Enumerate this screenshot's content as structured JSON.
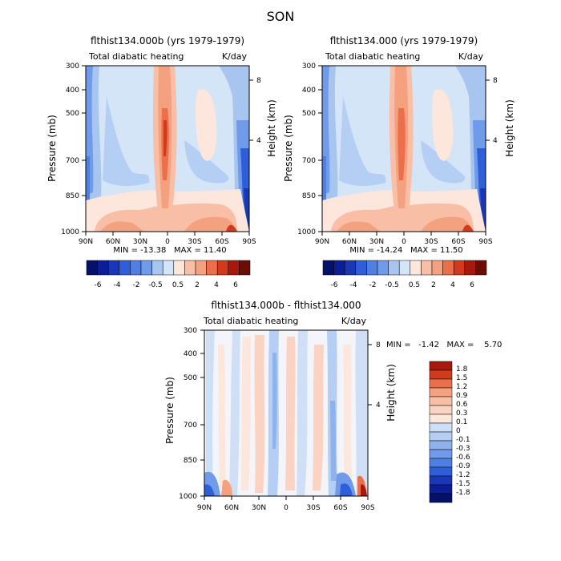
{
  "figure_title": "SON",
  "colorbar_ticks": [
    "-6",
    "-4",
    "-2",
    "-0.5",
    "0.5",
    "2",
    "4",
    "6"
  ],
  "legend_labels": [
    "1.8",
    "1.5",
    "1.2",
    "0.9",
    "0.6",
    "0.3",
    "0.1",
    "0",
    "-0.1",
    "-0.3",
    "-0.6",
    "-0.9",
    "-1.2",
    "-1.5",
    "-1.8"
  ],
  "chart_data": [
    {
      "type": "heatmap",
      "title": "flthist134.000b (yrs 1979-1979)",
      "subtitle_left": "Total diabatic heating",
      "subtitle_right": "K/day",
      "ylabel": "Pressure (mb)",
      "ylabel_right": "Height (km)",
      "xticks": [
        "90N",
        "60N",
        "30N",
        "0",
        "30S",
        "60S",
        "90S"
      ],
      "yticks": [
        "300",
        "400",
        "500",
        "700",
        "850",
        "1000"
      ],
      "yticks_right": [
        "8",
        "4"
      ],
      "stats": "MIN = -13.38   MAX = 11.40",
      "min": -13.38,
      "max": 11.4
    },
    {
      "type": "heatmap",
      "title": "flthist134.000 (yrs 1979-1979)",
      "subtitle_left": "Total diabatic heating",
      "subtitle_right": "K/day",
      "ylabel": "Pressure (mb)",
      "ylabel_right": "Height (km)",
      "xticks": [
        "90N",
        "60N",
        "30N",
        "0",
        "30S",
        "60S",
        "90S"
      ],
      "yticks": [
        "300",
        "400",
        "500",
        "700",
        "850",
        "1000"
      ],
      "yticks_right": [
        "8",
        "4"
      ],
      "stats": "MIN = -14.24   MAX = 11.50",
      "min": -14.24,
      "max": 11.5
    },
    {
      "type": "heatmap",
      "title": "flthist134.000b - flthist134.000",
      "subtitle_left": "Total diabatic heating",
      "subtitle_right": "K/day",
      "ylabel": "Pressure (mb)",
      "ylabel_right": "Height (km)",
      "xticks": [
        "90N",
        "60N",
        "30N",
        "0",
        "30S",
        "60S",
        "90S"
      ],
      "yticks": [
        "300",
        "400",
        "500",
        "700",
        "850",
        "1000"
      ],
      "yticks_right": [
        "8",
        "4"
      ],
      "stats": "MIN =   -1.42   MAX =    5.70",
      "min": -1.42,
      "max": 5.7
    }
  ]
}
